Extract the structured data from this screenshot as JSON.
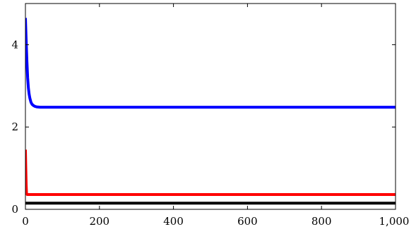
{
  "chart_data": {
    "type": "line",
    "xlim": [
      0,
      1000
    ],
    "ylim": [
      0,
      5
    ],
    "x_ticks": [
      0,
      200,
      400,
      600,
      800,
      1000
    ],
    "x_tick_labels": [
      "0",
      "200",
      "400",
      "600",
      "800",
      "1,000"
    ],
    "y_ticks": [
      0,
      2,
      4
    ],
    "y_tick_labels": [
      "0",
      "2",
      "4"
    ],
    "grid": false,
    "series": [
      {
        "color": "#0000ff",
        "x": [
          0,
          2,
          4,
          6,
          8,
          10,
          12,
          15,
          18,
          22,
          26,
          30,
          40,
          60,
          100,
          200,
          400,
          600,
          800,
          1000
        ],
        "y": [
          4.65,
          4.1,
          3.6,
          3.2,
          2.95,
          2.8,
          2.7,
          2.6,
          2.55,
          2.52,
          2.5,
          2.49,
          2.48,
          2.48,
          2.48,
          2.48,
          2.48,
          2.48,
          2.48,
          2.48
        ]
      },
      {
        "color": "#ff0000",
        "x": [
          0,
          1,
          2,
          3,
          5,
          10,
          50,
          200,
          400,
          600,
          800,
          1000
        ],
        "y": [
          1.45,
          1.0,
          0.6,
          0.38,
          0.36,
          0.36,
          0.36,
          0.36,
          0.36,
          0.36,
          0.36,
          0.36
        ]
      },
      {
        "color": "#000000",
        "x": [
          0,
          1000
        ],
        "y": [
          0.15,
          0.15
        ]
      }
    ]
  }
}
